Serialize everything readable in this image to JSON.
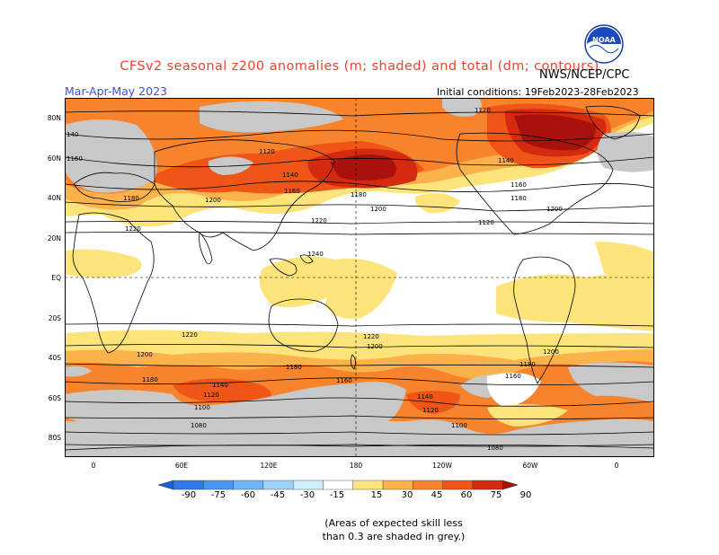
{
  "header": {
    "title": "CFSv2 seasonal z200 anomalies (m; shaded) and total (dm; contours)",
    "agency": "NWS/NCEP/CPC",
    "season": "Mar-Apr-May 2023",
    "initial_conditions": "Initial conditions: 19Feb2023-28Feb2023",
    "logo_text": "NOAA"
  },
  "map": {
    "lat_labels": [
      "80N",
      "60N",
      "40N",
      "20N",
      "EQ",
      "20S",
      "40S",
      "60S",
      "80S"
    ],
    "lon_labels": [
      "0",
      "60E",
      "120E",
      "180",
      "120W",
      "60W",
      "0"
    ],
    "contour_labels": {
      "c1120a": "1120",
      "c1120b": "1120",
      "c1120c": "1120",
      "c1140a": "1140",
      "c1140b": "1140",
      "c1160a": "1160",
      "c1160b": "1160",
      "c1160c": "1160",
      "c1180a": "1180",
      "c1180b": "1180",
      "c1180c": "1180",
      "c1200a": "1200",
      "c1200b": "1200",
      "c1200c": "1200",
      "c1220a": "1220",
      "c1220b": "1220",
      "c1240": "1240",
      "s1220a": "1220",
      "s1220b": "1220",
      "s1200a": "1200",
      "s1200b": "1200",
      "s1200c": "1200",
      "s1180a": "1180",
      "s1180b": "1180",
      "s1180c": "1180",
      "s1160a": "1160",
      "s1160b": "1160",
      "s1140a": "1140",
      "s1140b": "1140",
      "s1120a": "1120",
      "s1120b": "1120",
      "s1100a": "1100",
      "s1100b": "1100",
      "s1080a": "1080",
      "s1080b": "1080",
      "s140": "140"
    }
  },
  "colorbar": {
    "labels": [
      "-90",
      "-75",
      "-60",
      "-45",
      "-30",
      "-15",
      "15",
      "30",
      "45",
      "60",
      "75",
      "90"
    ],
    "colors": [
      "#1e5fd6",
      "#2f7ae8",
      "#4a96f2",
      "#6fb4f6",
      "#9dd3f9",
      "#cdeefc",
      "#ffffff",
      "#fde47a",
      "#fbb24a",
      "#f7842c",
      "#ef5517",
      "#d42a10",
      "#a8120c"
    ]
  },
  "footnote": {
    "line1": "(Areas of expected skill less",
    "line2": "than 0.3 are shaded in grey.)"
  },
  "colors": {
    "grey_skill": "#c8c8c8",
    "yellow": "#fde47a",
    "light_orange": "#fbb24a",
    "orange": "#f7842c",
    "red_orange": "#ef5517",
    "red": "#d42a10",
    "dark_red": "#a8120c"
  }
}
